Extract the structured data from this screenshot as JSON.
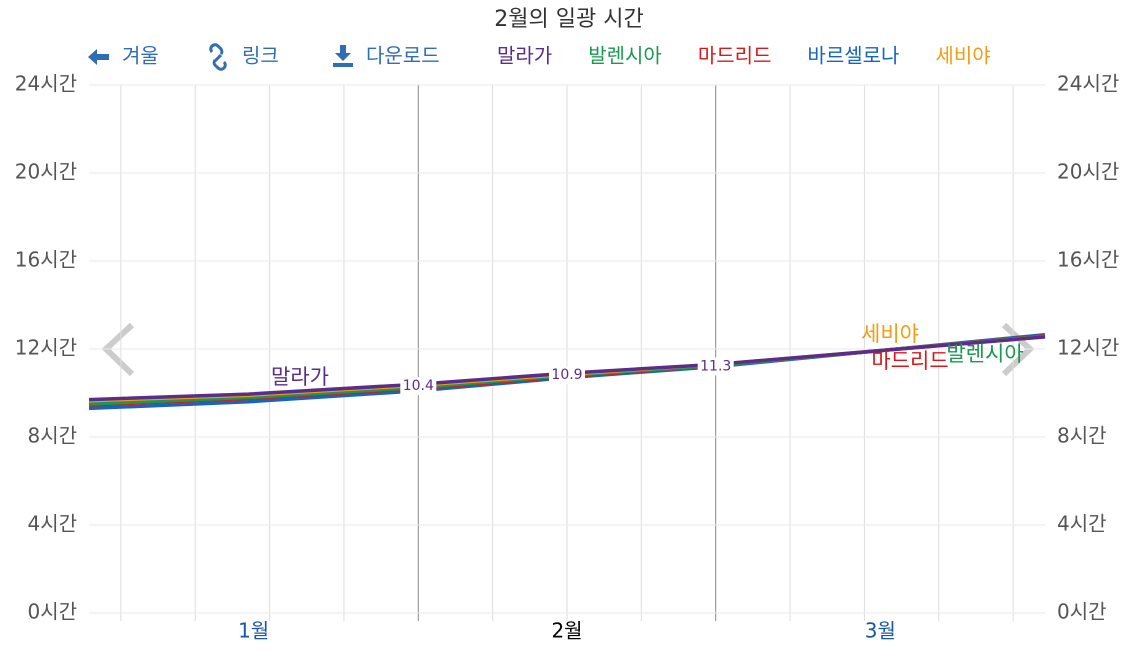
{
  "toolbar": [
    "겨울",
    "링크",
    "다운로드"
  ],
  "chart_data": {
    "type": "line",
    "title": "2월의 일광 시간",
    "x": [
      0,
      15,
      31,
      45,
      59,
      75,
      90
    ],
    "xlim": [
      0,
      90
    ],
    "xticks": [
      {
        "value": 15.5,
        "label": "1월"
      },
      {
        "value": 45,
        "label": "2월"
      },
      {
        "value": 74.5,
        "label": "3월"
      }
    ],
    "x_separators": [
      31,
      59
    ],
    "xgrid": [
      3,
      10,
      17,
      24,
      38,
      45,
      52,
      66,
      73,
      80,
      87
    ],
    "ylim": [
      0,
      24
    ],
    "yticks": [
      {
        "value": 0,
        "label": "0시간"
      },
      {
        "value": 4,
        "label": "4시간"
      },
      {
        "value": 8,
        "label": "8시간"
      },
      {
        "value": 12,
        "label": "12시간"
      },
      {
        "value": 16,
        "label": "16시간"
      },
      {
        "value": 20,
        "label": "20시간"
      },
      {
        "value": 24,
        "label": "24시간"
      }
    ],
    "grid": true,
    "series": [
      {
        "name": "말라가",
        "color": "#5b2c8a",
        "values": [
          9.7,
          9.95,
          10.4,
          10.9,
          11.3,
          11.95,
          12.55
        ],
        "value_labels": [
          null,
          null,
          "10.4",
          "10.9",
          "11.3",
          null,
          null
        ]
      },
      {
        "name": "발렌시아",
        "color": "#1a9850",
        "values": [
          9.5,
          9.8,
          10.25,
          10.8,
          11.25,
          11.95,
          12.58
        ]
      },
      {
        "name": "마드리드",
        "color": "#d7191c",
        "values": [
          9.45,
          9.75,
          10.2,
          10.75,
          11.25,
          11.95,
          12.6
        ]
      },
      {
        "name": "바르셀로나",
        "color": "#1565c0",
        "values": [
          9.3,
          9.6,
          10.1,
          10.7,
          11.2,
          11.95,
          12.65
        ]
      },
      {
        "name": "세비야",
        "color": "#f39c12",
        "values": [
          9.65,
          9.9,
          10.35,
          10.85,
          11.3,
          11.95,
          12.55
        ]
      }
    ]
  }
}
